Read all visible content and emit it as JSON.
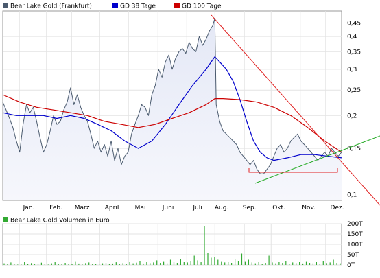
{
  "legend": [
    {
      "label": "Bear Lake Gold (Frankfurt)",
      "color": "#4a5a6e"
    },
    {
      "label": "GD 38 Tage",
      "color": "#0000cc"
    },
    {
      "label": "GD 100 Tage",
      "color": "#cc0000"
    }
  ],
  "volume_legend": {
    "label": "Bear Lake Gold Volumen in Euro",
    "color": "#33aa33"
  },
  "chart_data": [
    {
      "type": "line",
      "y_scale": "log",
      "ylim": [
        0.095,
        0.5
      ],
      "grid": true,
      "legend_position": "top-left",
      "x_range": [
        0,
        100
      ],
      "yticks": [
        0.1,
        0.15,
        0.2,
        0.25,
        0.3,
        0.35,
        0.4,
        0.45
      ],
      "ytick_labels": [
        "0,1",
        "0,15",
        "0,2",
        "0,25",
        "0,3",
        "0,35",
        "0,4",
        "0,45"
      ],
      "xticks": [
        {
          "label": "Jan.",
          "pos": 7.7
        },
        {
          "label": "Feb.",
          "pos": 15.7
        },
        {
          "label": "März",
          "pos": 23.4
        },
        {
          "label": "April",
          "pos": 32.2
        },
        {
          "label": "Mai",
          "pos": 40.6
        },
        {
          "label": "Juni",
          "pos": 48.8
        },
        {
          "label": "Juli",
          "pos": 57.5
        },
        {
          "label": "Aug.",
          "pos": 64.6
        },
        {
          "label": "Sep.",
          "pos": 72.8
        },
        {
          "label": "Okt.",
          "pos": 81.5
        },
        {
          "label": "Nov.",
          "pos": 90.3
        },
        {
          "label": "Dez.",
          "pos": 98.7
        }
      ],
      "month_grid": [
        4.9,
        12.9,
        20.3,
        28.6,
        37.1,
        45.8,
        54.3,
        62.6,
        71.3,
        79.2,
        87.8,
        95.3
      ],
      "series": [
        {
          "name": "Bear Lake Gold (Frankfurt)",
          "color": "#4a5a6e",
          "x": [
            0,
            1,
            2,
            3,
            4,
            5,
            6,
            7,
            8,
            9,
            10,
            11,
            12,
            13,
            14,
            15,
            16,
            17,
            18,
            19,
            20,
            21,
            22,
            23,
            24,
            25,
            26,
            27,
            28,
            29,
            30,
            31,
            32,
            33,
            34,
            35,
            36,
            37,
            38,
            39,
            40,
            41,
            42,
            43,
            44,
            45,
            46,
            47,
            48,
            49,
            50,
            51,
            52,
            53,
            54,
            55,
            56,
            57,
            58,
            59,
            60,
            61,
            62,
            62.6,
            63,
            64,
            65,
            66,
            67,
            68,
            69,
            70,
            71,
            72,
            73,
            74,
            75,
            76,
            77,
            78,
            79,
            80,
            81,
            82,
            83,
            84,
            85,
            86,
            87,
            88,
            89,
            90,
            91,
            92,
            93,
            94,
            95,
            96,
            97,
            98,
            99,
            100
          ],
          "values": [
            0.225,
            0.21,
            0.195,
            0.18,
            0.16,
            0.145,
            0.185,
            0.22,
            0.205,
            0.215,
            0.19,
            0.165,
            0.145,
            0.155,
            0.175,
            0.2,
            0.185,
            0.19,
            0.21,
            0.225,
            0.255,
            0.22,
            0.24,
            0.215,
            0.2,
            0.19,
            0.17,
            0.15,
            0.16,
            0.145,
            0.155,
            0.14,
            0.16,
            0.135,
            0.15,
            0.13,
            0.14,
            0.145,
            0.17,
            0.185,
            0.2,
            0.22,
            0.215,
            0.2,
            0.24,
            0.26,
            0.3,
            0.28,
            0.32,
            0.34,
            0.3,
            0.33,
            0.35,
            0.36,
            0.345,
            0.38,
            0.36,
            0.35,
            0.4,
            0.37,
            0.39,
            0.42,
            0.44,
            0.47,
            0.22,
            0.19,
            0.175,
            0.17,
            0.165,
            0.16,
            0.155,
            0.145,
            0.14,
            0.135,
            0.13,
            0.135,
            0.125,
            0.12,
            0.12,
            0.125,
            0.13,
            0.14,
            0.15,
            0.155,
            0.145,
            0.15,
            0.16,
            0.165,
            0.17,
            0.16,
            0.155,
            0.15,
            0.145,
            0.14,
            0.135,
            0.14,
            0.145,
            0.14,
            0.15,
            0.145,
            0.14,
            0.145
          ]
        },
        {
          "name": "GD 38 Tage",
          "color": "#0000cc",
          "x": [
            0,
            4,
            8,
            12,
            16,
            20,
            24,
            28,
            32,
            36,
            40,
            44,
            48,
            52,
            56,
            60,
            62.6,
            64,
            66,
            68,
            70,
            72,
            74,
            76,
            78,
            80,
            84,
            88,
            92,
            96,
            100
          ],
          "values": [
            0.205,
            0.2,
            0.2,
            0.2,
            0.195,
            0.2,
            0.195,
            0.185,
            0.175,
            0.16,
            0.15,
            0.16,
            0.185,
            0.22,
            0.26,
            0.3,
            0.335,
            0.32,
            0.3,
            0.27,
            0.23,
            0.19,
            0.16,
            0.145,
            0.138,
            0.135,
            0.138,
            0.142,
            0.142,
            0.14,
            0.138
          ]
        },
        {
          "name": "GD 100 Tage",
          "color": "#cc0000",
          "x": [
            0,
            5,
            10,
            15,
            20,
            25,
            30,
            35,
            40,
            45,
            50,
            55,
            60,
            62.6,
            65,
            70,
            75,
            80,
            85,
            90,
            95,
            100
          ],
          "values": [
            0.24,
            0.225,
            0.215,
            0.21,
            0.205,
            0.2,
            0.19,
            0.185,
            0.18,
            0.185,
            0.195,
            0.205,
            0.22,
            0.232,
            0.232,
            0.23,
            0.225,
            0.215,
            0.2,
            0.18,
            0.16,
            0.145
          ]
        }
      ]
    },
    {
      "type": "bar",
      "ylim": [
        0,
        200
      ],
      "yticks": [
        0,
        50,
        100,
        150,
        200
      ],
      "ytick_labels": [
        "0T",
        "50T",
        "100T",
        "150T",
        "200T"
      ],
      "series": [
        {
          "name": "Bear Lake Gold Volumen in Euro",
          "color": "#33aa33",
          "values": [
            8,
            3,
            12,
            5,
            2,
            6,
            15,
            4,
            9,
            3,
            7,
            11,
            5,
            2,
            8,
            14,
            4,
            6,
            10,
            3,
            5,
            18,
            7,
            4,
            9,
            12,
            3,
            6,
            5,
            8,
            10,
            4,
            7,
            13,
            5,
            9,
            6,
            14,
            8,
            11,
            20,
            7,
            15,
            9,
            12,
            22,
            10,
            18,
            8,
            25,
            14,
            10,
            30,
            16,
            12,
            20,
            45,
            22,
            15,
            190,
            60,
            35,
            40,
            25,
            18,
            12,
            15,
            10,
            30,
            20,
            55,
            18,
            25,
            12,
            8,
            14,
            6,
            10,
            45,
            12,
            8,
            15,
            10,
            20,
            6,
            12,
            9,
            15,
            7,
            18,
            10,
            8,
            14,
            6,
            20,
            9,
            12,
            25,
            10,
            8
          ]
        }
      ]
    }
  ]
}
